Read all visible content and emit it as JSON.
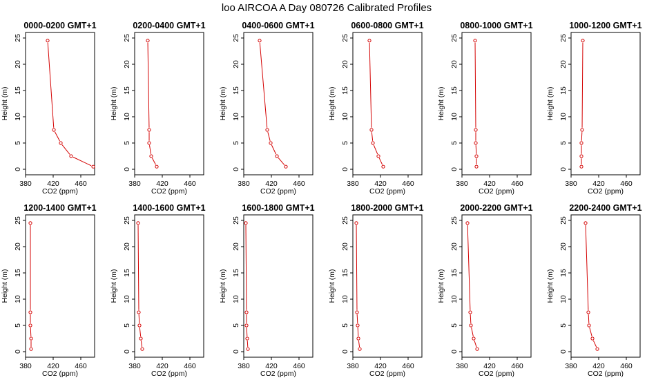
{
  "figure": {
    "title": "loo AIRCOA A  Day 080726  Calibrated Profiles"
  },
  "chart_data": [
    {
      "type": "line",
      "title": "0000-0200 GMT+1",
      "xlabel": "CO2 (ppm)",
      "ylabel": "Height (m)",
      "xlim": [
        380,
        480
      ],
      "ylim": [
        0,
        25
      ],
      "xticks": [
        380,
        420,
        460
      ],
      "yticks": [
        0,
        5,
        10,
        15,
        20,
        25
      ],
      "series": [
        {
          "x": [
            478,
            446,
            431,
            421,
            412
          ],
          "y": [
            0.5,
            2.5,
            5,
            7.5,
            24.5
          ]
        }
      ]
    },
    {
      "type": "line",
      "title": "0200-0400 GMT+1",
      "xlabel": "CO2 (ppm)",
      "ylabel": "Height (m)",
      "xlim": [
        380,
        480
      ],
      "ylim": [
        0,
        25
      ],
      "xticks": [
        380,
        420,
        460
      ],
      "yticks": [
        0,
        5,
        10,
        15,
        20,
        25
      ],
      "series": [
        {
          "x": [
            412,
            404,
            401,
            401,
            399
          ],
          "y": [
            0.5,
            2.5,
            5,
            7.5,
            24.5
          ]
        }
      ]
    },
    {
      "type": "line",
      "title": "0400-0600 GMT+1",
      "xlabel": "CO2 (ppm)",
      "ylabel": "Height (m)",
      "xlim": [
        380,
        480
      ],
      "ylim": [
        0,
        25
      ],
      "xticks": [
        380,
        420,
        460
      ],
      "yticks": [
        0,
        5,
        10,
        15,
        20,
        25
      ],
      "series": [
        {
          "x": [
            441,
            428,
            419,
            414,
            403
          ],
          "y": [
            0.5,
            2.5,
            5,
            7.5,
            24.5
          ]
        }
      ]
    },
    {
      "type": "line",
      "title": "0600-0800 GMT+1",
      "xlabel": "CO2 (ppm)",
      "ylabel": "Height (m)",
      "xlim": [
        380,
        480
      ],
      "ylim": [
        0,
        25
      ],
      "xticks": [
        380,
        420,
        460
      ],
      "yticks": [
        0,
        5,
        10,
        15,
        20,
        25
      ],
      "series": [
        {
          "x": [
            424,
            417,
            409,
            407,
            404
          ],
          "y": [
            0.5,
            2.5,
            5,
            7.5,
            24.5
          ]
        }
      ]
    },
    {
      "type": "line",
      "title": "0800-1000 GMT+1",
      "xlabel": "CO2 (ppm)",
      "ylabel": "Height (m)",
      "xlim": [
        380,
        480
      ],
      "ylim": [
        0,
        25
      ],
      "xticks": [
        380,
        420,
        460
      ],
      "yticks": [
        0,
        5,
        10,
        15,
        20,
        25
      ],
      "series": [
        {
          "x": [
            401,
            401,
            400,
            400,
            399
          ],
          "y": [
            0.5,
            2.5,
            5,
            7.5,
            24.5
          ]
        }
      ]
    },
    {
      "type": "line",
      "title": "1000-1200 GMT+1",
      "xlabel": "CO2 (ppm)",
      "ylabel": "Height (m)",
      "xlim": [
        380,
        480
      ],
      "ylim": [
        0,
        25
      ],
      "xticks": [
        380,
        420,
        460
      ],
      "yticks": [
        0,
        5,
        10,
        15,
        20,
        25
      ],
      "series": [
        {
          "x": [
            395,
            395,
            395,
            396,
            397
          ],
          "y": [
            0.5,
            2.5,
            5,
            7.5,
            24.5
          ]
        }
      ]
    },
    {
      "type": "line",
      "title": "1200-1400 GMT+1",
      "xlabel": "CO2 (ppm)",
      "ylabel": "Height (m)",
      "xlim": [
        380,
        480
      ],
      "ylim": [
        0,
        25
      ],
      "xticks": [
        380,
        420,
        460
      ],
      "yticks": [
        0,
        5,
        10,
        15,
        20,
        25
      ],
      "series": [
        {
          "x": [
            388,
            388,
            387,
            387,
            387
          ],
          "y": [
            0.5,
            2.5,
            5,
            7.5,
            24.5
          ]
        }
      ]
    },
    {
      "type": "line",
      "title": "1400-1600 GMT+1",
      "xlabel": "CO2 (ppm)",
      "ylabel": "Height (m)",
      "xlim": [
        380,
        480
      ],
      "ylim": [
        0,
        25
      ],
      "xticks": [
        380,
        420,
        460
      ],
      "yticks": [
        0,
        5,
        10,
        15,
        20,
        25
      ],
      "series": [
        {
          "x": [
            391,
            389,
            387,
            386,
            385
          ],
          "y": [
            0.5,
            2.5,
            5,
            7.5,
            24.5
          ]
        }
      ]
    },
    {
      "type": "line",
      "title": "1600-1800 GMT+1",
      "xlabel": "CO2 (ppm)",
      "ylabel": "Height (m)",
      "xlim": [
        380,
        480
      ],
      "ylim": [
        0,
        25
      ],
      "xticks": [
        380,
        420,
        460
      ],
      "yticks": [
        0,
        5,
        10,
        15,
        20,
        25
      ],
      "series": [
        {
          "x": [
            386,
            385,
            384,
            384,
            383
          ],
          "y": [
            0.5,
            2.5,
            5,
            7.5,
            24.5
          ]
        }
      ]
    },
    {
      "type": "line",
      "title": "1800-2000 GMT+1",
      "xlabel": "CO2 (ppm)",
      "ylabel": "Height (m)",
      "xlim": [
        380,
        480
      ],
      "ylim": [
        0,
        25
      ],
      "xticks": [
        380,
        420,
        460
      ],
      "yticks": [
        0,
        5,
        10,
        15,
        20,
        25
      ],
      "series": [
        {
          "x": [
            390,
            388,
            387,
            386,
            385
          ],
          "y": [
            0.5,
            2.5,
            5,
            7.5,
            24.5
          ]
        }
      ]
    },
    {
      "type": "line",
      "title": "2000-2200 GMT+1",
      "xlabel": "CO2 (ppm)",
      "ylabel": "Height (m)",
      "xlim": [
        380,
        480
      ],
      "ylim": [
        0,
        25
      ],
      "xticks": [
        380,
        420,
        460
      ],
      "yticks": [
        0,
        5,
        10,
        15,
        20,
        25
      ],
      "series": [
        {
          "x": [
            402,
            397,
            393,
            392,
            388
          ],
          "y": [
            0.5,
            2.5,
            5,
            7.5,
            24.5
          ]
        }
      ]
    },
    {
      "type": "line",
      "title": "2200-2400 GMT+1",
      "xlabel": "CO2 (ppm)",
      "ylabel": "Height (m)",
      "xlim": [
        380,
        480
      ],
      "ylim": [
        0,
        25
      ],
      "xticks": [
        380,
        420,
        460
      ],
      "yticks": [
        0,
        5,
        10,
        15,
        20,
        25
      ],
      "series": [
        {
          "x": [
            418,
            411,
            406,
            405,
            401
          ],
          "y": [
            0.5,
            2.5,
            5,
            7.5,
            24.5
          ]
        }
      ]
    }
  ]
}
